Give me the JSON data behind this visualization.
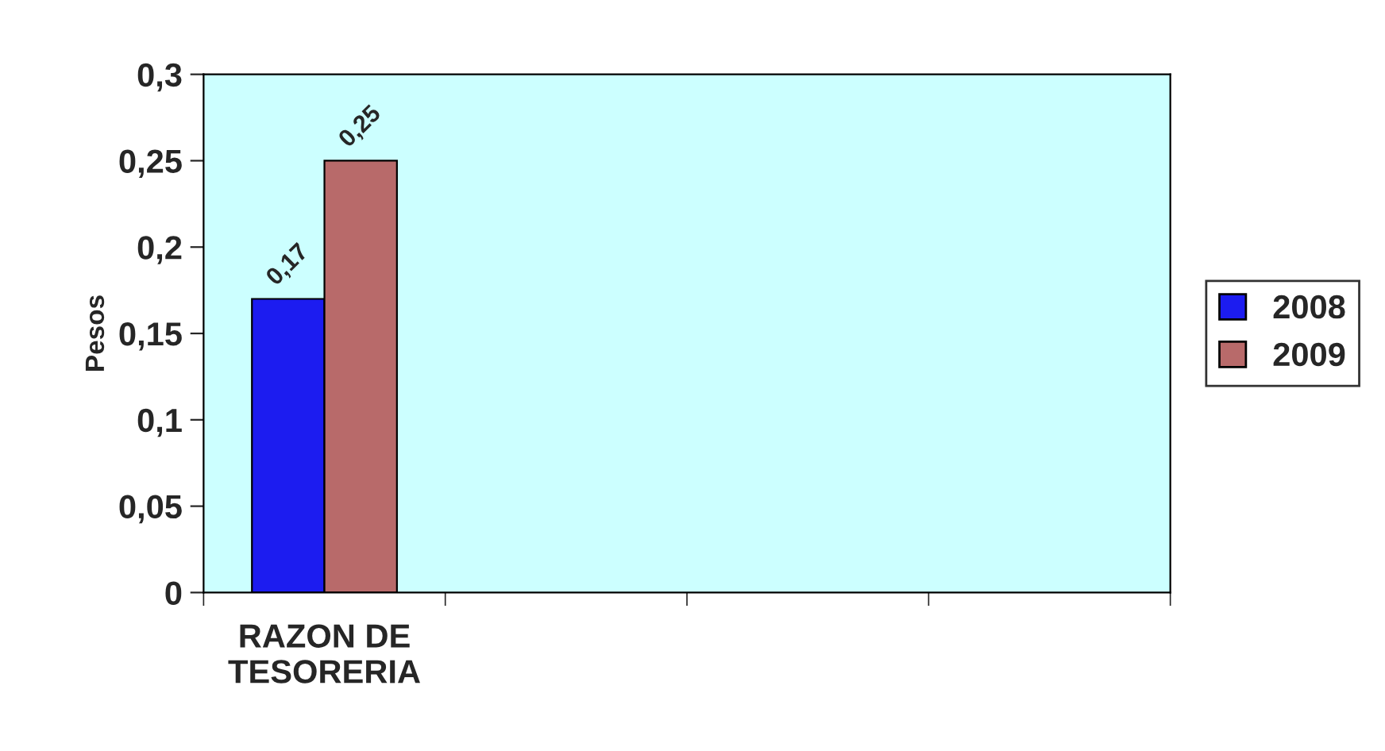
{
  "chart_data": {
    "type": "bar",
    "ylabel": "Pesos",
    "categories": [
      "RAZON DE\nTESORERIA",
      null,
      null,
      null
    ],
    "series": [
      {
        "name": "2008",
        "color": "#1c1cf0",
        "values": [
          0.17,
          null,
          null,
          null
        ],
        "value_labels": [
          "0,17",
          null,
          null,
          null
        ]
      },
      {
        "name": "2009",
        "color": "#b86a6a",
        "values": [
          0.25,
          null,
          null,
          null
        ],
        "value_labels": [
          "0,25",
          null,
          null,
          null
        ]
      }
    ],
    "ylim": [
      0,
      0.3
    ],
    "yticks": [
      0,
      {
        "value": 0.05,
        "label": "0,05"
      },
      {
        "value": 0.1,
        "label": "0,1"
      },
      {
        "value": 0.15,
        "label": "0,15"
      },
      {
        "value": 0.2,
        "label": "0,2"
      },
      {
        "value": 0.25,
        "label": "0,25"
      },
      {
        "value": 0.3,
        "label": "0,3"
      }
    ],
    "grid": false,
    "legend": "right"
  }
}
